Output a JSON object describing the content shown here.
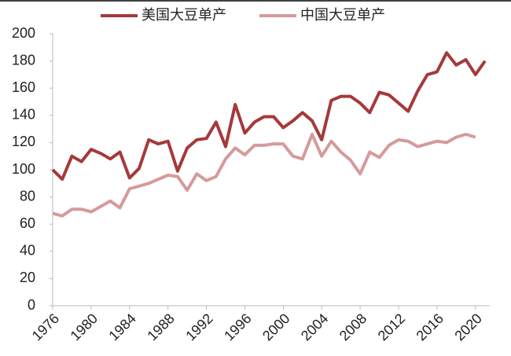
{
  "chart_data": {
    "type": "line",
    "categories": [
      "1976",
      null,
      null,
      null,
      "1980",
      null,
      null,
      null,
      "1984",
      null,
      null,
      null,
      "1988",
      null,
      null,
      null,
      "1992",
      null,
      null,
      null,
      "1996",
      null,
      null,
      null,
      "2000",
      null,
      null,
      null,
      "2004",
      null,
      null,
      null,
      "2008",
      null,
      null,
      null,
      "2012",
      null,
      null,
      null,
      "2016",
      null,
      null,
      null,
      "2020",
      null
    ],
    "series": [
      {
        "name": "美国大豆单产",
        "color": "#a5393b",
        "values": [
          100,
          93,
          110,
          106,
          115,
          112,
          108,
          113,
          94,
          101,
          122,
          119,
          121,
          99,
          116,
          122,
          123,
          135,
          117,
          148,
          127,
          135,
          139,
          139,
          131,
          136,
          142,
          136,
          122,
          151,
          154,
          154,
          149,
          142,
          157,
          155,
          149,
          143,
          158,
          170,
          172,
          186,
          177,
          181,
          170,
          180
        ]
      },
      {
        "name": "中国大豆单产",
        "color": "#d69a9a",
        "values": [
          68,
          66,
          71,
          71,
          69,
          73,
          77,
          72,
          86,
          88,
          90,
          93,
          96,
          95,
          85,
          97,
          92,
          95,
          108,
          116,
          111,
          118,
          118,
          119,
          119,
          110,
          108,
          126,
          110,
          121,
          113,
          107,
          97,
          113,
          109,
          118,
          122,
          121,
          117,
          119,
          121,
          120,
          124,
          126,
          124,
          null
        ]
      }
    ],
    "ylim": [
      0,
      200
    ],
    "yticks": [
      0,
      20,
      40,
      60,
      80,
      100,
      120,
      140,
      160,
      180,
      200
    ],
    "legend": "top"
  }
}
